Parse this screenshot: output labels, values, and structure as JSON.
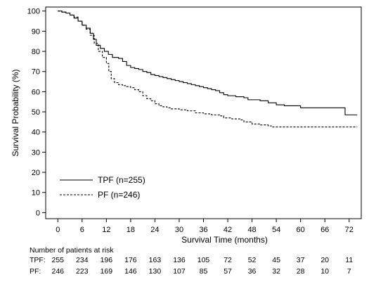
{
  "chart_data": {
    "type": "line",
    "xlabel": "Survival Time (months)",
    "ylabel": "Survival Probability (%)",
    "xlim": [
      -3,
      75
    ],
    "ylim": [
      -3,
      102
    ],
    "xticks": [
      0,
      6,
      12,
      18,
      24,
      30,
      36,
      42,
      48,
      54,
      60,
      66,
      72
    ],
    "yticks": [
      0,
      10,
      20,
      30,
      40,
      50,
      60,
      70,
      80,
      90,
      100
    ],
    "grid": false,
    "legend_position": "bottom-left",
    "series": [
      {
        "name": "TPF (n=255)",
        "dash": "solid",
        "points": [
          [
            0,
            100
          ],
          [
            1,
            99.5
          ],
          [
            2,
            99
          ],
          [
            3,
            98
          ],
          [
            4,
            96.5
          ],
          [
            5,
            95
          ],
          [
            6,
            93
          ],
          [
            7,
            91.5
          ],
          [
            8,
            89
          ],
          [
            8.8,
            86
          ],
          [
            9.5,
            83
          ],
          [
            10.5,
            81.5
          ],
          [
            11.5,
            80
          ],
          [
            12.5,
            78.5
          ],
          [
            13.5,
            77
          ],
          [
            15,
            76.5
          ],
          [
            16,
            75
          ],
          [
            17,
            73
          ],
          [
            18,
            72
          ],
          [
            19,
            71.5
          ],
          [
            20,
            71
          ],
          [
            21,
            70
          ],
          [
            22,
            69.5
          ],
          [
            23,
            68.5
          ],
          [
            24,
            68
          ],
          [
            25,
            67.5
          ],
          [
            26,
            67
          ],
          [
            27,
            66.5
          ],
          [
            28,
            66
          ],
          [
            29,
            65.5
          ],
          [
            30,
            65
          ],
          [
            31,
            64.5
          ],
          [
            32,
            64
          ],
          [
            33,
            63.5
          ],
          [
            34,
            63
          ],
          [
            35,
            62.5
          ],
          [
            36,
            62
          ],
          [
            37,
            61.5
          ],
          [
            38,
            61
          ],
          [
            39,
            60.5
          ],
          [
            40,
            59.5
          ],
          [
            41,
            58.5
          ],
          [
            42,
            58
          ],
          [
            43,
            58
          ],
          [
            44,
            57.5
          ],
          [
            46,
            57
          ],
          [
            47,
            56
          ],
          [
            48,
            56
          ],
          [
            50,
            55.5
          ],
          [
            52,
            54.5
          ],
          [
            54,
            53.5
          ],
          [
            56,
            53
          ],
          [
            58,
            53
          ],
          [
            60,
            52
          ],
          [
            62,
            52
          ],
          [
            64,
            52
          ],
          [
            66,
            52
          ],
          [
            68,
            52
          ],
          [
            70,
            52
          ],
          [
            71,
            48.5
          ],
          [
            72,
            48.5
          ],
          [
            74,
            48.5
          ]
        ]
      },
      {
        "name": "PF (n=246)",
        "dash": "dashed",
        "points": [
          [
            0,
            100
          ],
          [
            1,
            99.5
          ],
          [
            2,
            99
          ],
          [
            3,
            98
          ],
          [
            4,
            97
          ],
          [
            5,
            95
          ],
          [
            6,
            93
          ],
          [
            7,
            91
          ],
          [
            8,
            88
          ],
          [
            9,
            84
          ],
          [
            10,
            80
          ],
          [
            11,
            77
          ],
          [
            12,
            74
          ],
          [
            12.6,
            70
          ],
          [
            13.2,
            66.5
          ],
          [
            14,
            64.5
          ],
          [
            15,
            63.5
          ],
          [
            16,
            63
          ],
          [
            17,
            62.5
          ],
          [
            18,
            62
          ],
          [
            19,
            61
          ],
          [
            20,
            60
          ],
          [
            21,
            58
          ],
          [
            22,
            56.5
          ],
          [
            23,
            55.5
          ],
          [
            24,
            54
          ],
          [
            25,
            53
          ],
          [
            26,
            52.5
          ],
          [
            27,
            52
          ],
          [
            28,
            51.5
          ],
          [
            30,
            51
          ],
          [
            32,
            50.5
          ],
          [
            34,
            49.5
          ],
          [
            36,
            49
          ],
          [
            38,
            48.5
          ],
          [
            40,
            48
          ],
          [
            41,
            47
          ],
          [
            43,
            46.5
          ],
          [
            45,
            46
          ],
          [
            46,
            45
          ],
          [
            48,
            44
          ],
          [
            50,
            43.5
          ],
          [
            52,
            43
          ],
          [
            53,
            42.5
          ],
          [
            55,
            42.5
          ],
          [
            60,
            42.5
          ],
          [
            66,
            42.5
          ],
          [
            72,
            42.5
          ],
          [
            74,
            42.5
          ]
        ]
      }
    ],
    "risk_table": {
      "title": "Number of patients at risk",
      "rows": [
        {
          "label": "TPF:",
          "values": [
            "255",
            "234",
            "196",
            "176",
            "163",
            "136",
            "105",
            "72",
            "52",
            "45",
            "37",
            "20",
            "11"
          ]
        },
        {
          "label": "PF:",
          "values": [
            "246",
            "223",
            "169",
            "146",
            "130",
            "107",
            "85",
            "57",
            "36",
            "32",
            "28",
            "10",
            "7"
          ]
        }
      ]
    }
  }
}
